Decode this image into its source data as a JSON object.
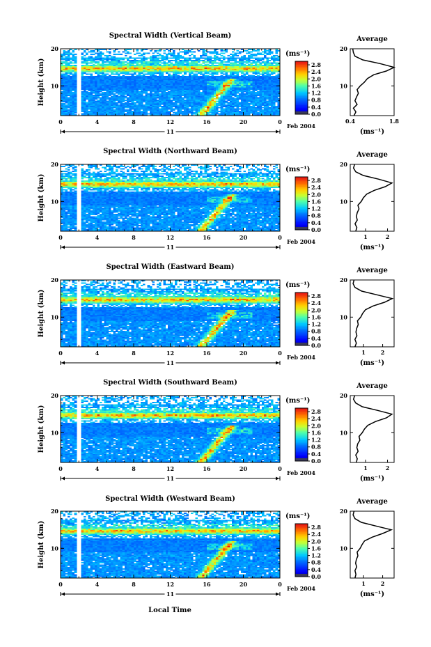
{
  "figure": {
    "xlabel": "Local Time",
    "ylabel": "Height (km)",
    "date_label": "Feb 2004",
    "day_label": "11",
    "colorbar_unit": "(ms⁻¹)",
    "average_title": "Average",
    "average_xlabel": "(ms⁻¹)"
  },
  "chart_data": [
    {
      "type": "heatmap",
      "title": "Spectral Width (Vertical Beam)",
      "x_ticks": [
        "0",
        "4",
        "8",
        "12",
        "16",
        "20",
        "0"
      ],
      "xlim": [
        0,
        24
      ],
      "y_ticks": [
        "10",
        "20"
      ],
      "ylim": [
        2,
        20
      ],
      "colorbar_ticks": [
        "0.0",
        "0.4",
        "0.8",
        "1.2",
        "1.6",
        "2.0",
        "2.4",
        "2.8"
      ],
      "colorbar_range": [
        0,
        3.0
      ],
      "average": {
        "x_ticks": [
          "0.4",
          "1.8"
        ],
        "xlim": [
          0.4,
          1.8
        ],
        "y_ticks": [
          "10",
          "20"
        ],
        "height": [
          2,
          3,
          4,
          5,
          6,
          7,
          8,
          9,
          10,
          11,
          12,
          13,
          14,
          15,
          16,
          17,
          18,
          19,
          20
        ],
        "width": [
          0.52,
          0.58,
          0.5,
          0.62,
          0.55,
          0.6,
          0.66,
          0.62,
          0.72,
          0.85,
          0.95,
          1.15,
          1.55,
          1.8,
          1.35,
          0.8,
          0.55,
          0.5,
          0.48
        ]
      }
    },
    {
      "type": "heatmap",
      "title": "Spectral Width (Northward Beam)",
      "x_ticks": [
        "0",
        "4",
        "8",
        "12",
        "16",
        "20",
        "0"
      ],
      "xlim": [
        0,
        24
      ],
      "y_ticks": [
        "10",
        "20"
      ],
      "ylim": [
        2,
        20
      ],
      "colorbar_ticks": [
        "0.0",
        "0.4",
        "0.8",
        "1.2",
        "1.6",
        "2.0",
        "2.4",
        "2.8"
      ],
      "colorbar_range": [
        0,
        3.0
      ],
      "average": {
        "x_ticks": [
          "1",
          "2"
        ],
        "xlim": [
          0.3,
          2.3
        ],
        "y_ticks": [
          "10",
          "20"
        ],
        "height": [
          2,
          3,
          4,
          5,
          6,
          7,
          8,
          9,
          10,
          11,
          12,
          13,
          14,
          15,
          16,
          17,
          18,
          19,
          20
        ],
        "width": [
          0.55,
          0.6,
          0.52,
          0.62,
          0.58,
          0.62,
          0.7,
          0.65,
          0.8,
          0.9,
          1.05,
          1.4,
          1.9,
          2.2,
          1.6,
          0.9,
          0.55,
          0.45,
          0.5
        ]
      }
    },
    {
      "type": "heatmap",
      "title": "Spectral Width (Eastward Beam)",
      "x_ticks": [
        "0",
        "4",
        "8",
        "12",
        "16",
        "20",
        "0"
      ],
      "xlim": [
        0,
        24
      ],
      "y_ticks": [
        "10",
        "20"
      ],
      "ylim": [
        2,
        20
      ],
      "colorbar_ticks": [
        "0.0",
        "0.4",
        "0.8",
        "1.2",
        "1.6",
        "2.0",
        "2.4",
        "2.8"
      ],
      "colorbar_range": [
        0,
        3.0
      ],
      "average": {
        "x_ticks": [
          "1",
          "2"
        ],
        "xlim": [
          0.3,
          2.6
        ],
        "y_ticks": [
          "10",
          "20"
        ],
        "height": [
          2,
          3,
          4,
          5,
          6,
          7,
          8,
          9,
          10,
          11,
          12,
          13,
          14,
          15,
          16,
          17,
          18,
          19,
          20
        ],
        "width": [
          0.55,
          0.62,
          0.55,
          0.65,
          0.6,
          0.64,
          0.72,
          0.68,
          0.85,
          0.95,
          1.1,
          1.5,
          2.1,
          2.5,
          1.7,
          0.9,
          0.55,
          0.45,
          0.5
        ]
      }
    },
    {
      "type": "heatmap",
      "title": "Spectral Width (Southward Beam)",
      "x_ticks": [
        "0",
        "4",
        "8",
        "12",
        "16",
        "20",
        "0"
      ],
      "xlim": [
        0,
        24
      ],
      "y_ticks": [
        "10",
        "20"
      ],
      "ylim": [
        2,
        20
      ],
      "colorbar_ticks": [
        "0.0",
        "0.4",
        "0.8",
        "1.2",
        "1.6",
        "2.0",
        "2.4",
        "2.8"
      ],
      "colorbar_range": [
        0,
        3.0
      ],
      "average": {
        "x_ticks": [
          "1",
          "2"
        ],
        "xlim": [
          0.3,
          2.3
        ],
        "y_ticks": [
          "10",
          "20"
        ],
        "height": [
          2,
          3,
          4,
          5,
          6,
          7,
          8,
          9,
          10,
          11,
          12,
          13,
          14,
          15,
          16,
          17,
          18,
          19,
          20
        ],
        "width": [
          0.58,
          0.62,
          0.55,
          0.66,
          0.6,
          0.64,
          0.74,
          0.7,
          0.85,
          0.95,
          1.1,
          1.45,
          1.95,
          2.2,
          1.55,
          0.85,
          0.55,
          0.45,
          0.5
        ]
      }
    },
    {
      "type": "heatmap",
      "title": "Spectral Width (Westward Beam)",
      "x_ticks": [
        "0",
        "4",
        "8",
        "12",
        "16",
        "20",
        "0"
      ],
      "xlim": [
        0,
        24
      ],
      "y_ticks": [
        "10",
        "20"
      ],
      "ylim": [
        2,
        20
      ],
      "colorbar_ticks": [
        "0.0",
        "0.4",
        "0.8",
        "1.2",
        "1.6",
        "2.0",
        "2.4",
        "2.8"
      ],
      "colorbar_range": [
        0,
        3.0
      ],
      "average": {
        "x_ticks": [
          "1",
          "2"
        ],
        "xlim": [
          0.3,
          2.6
        ],
        "y_ticks": [
          "10",
          "20"
        ],
        "height": [
          2,
          3,
          4,
          5,
          6,
          7,
          8,
          9,
          10,
          11,
          12,
          13,
          14,
          15,
          16,
          17,
          18,
          19,
          20
        ],
        "width": [
          0.55,
          0.6,
          0.55,
          0.64,
          0.58,
          0.62,
          0.7,
          0.66,
          0.82,
          0.92,
          1.05,
          1.45,
          2.0,
          2.45,
          1.65,
          0.88,
          0.55,
          0.45,
          0.5
        ]
      }
    }
  ]
}
